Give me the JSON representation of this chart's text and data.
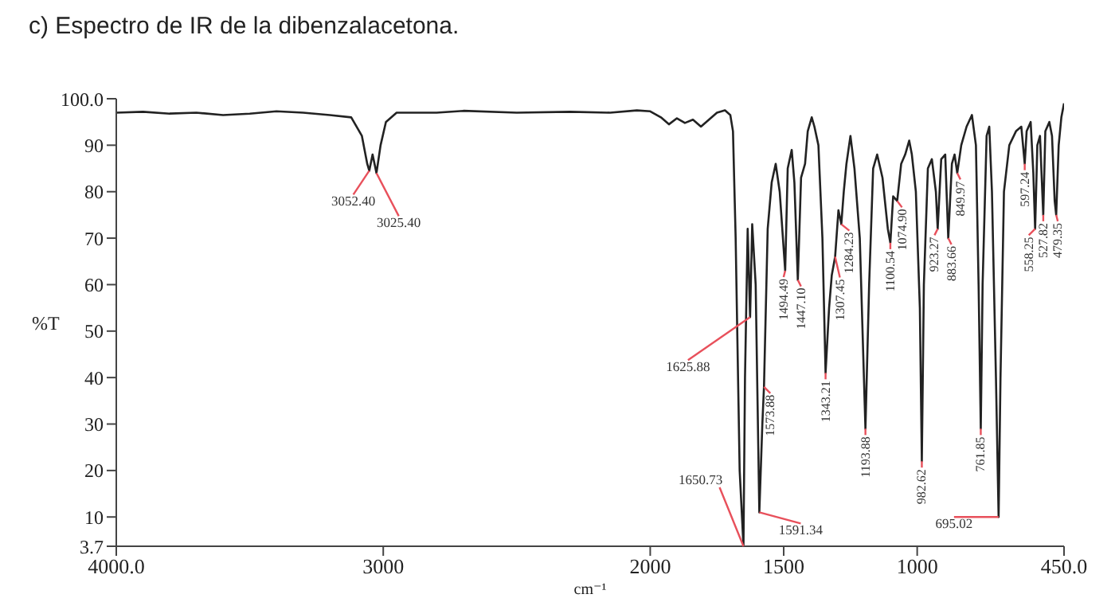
{
  "chart_data": {
    "type": "line",
    "title": "c) Espectro de IR de la dibenzalacetona.",
    "xlabel": "cm⁻¹",
    "ylabel": "%T",
    "color": "#222222",
    "x": [
      4000,
      3900,
      3800,
      3700,
      3600,
      3500,
      3400,
      3300,
      3200,
      3120,
      3080,
      3060,
      3052.4,
      3040,
      3025.4,
      3010,
      2990,
      2950,
      2800,
      2700,
      2500,
      2300,
      2150,
      2050,
      2000,
      1960,
      1930,
      1900,
      1870,
      1840,
      1810,
      1780,
      1750,
      1720,
      1700,
      1690,
      1680,
      1665,
      1650.73,
      1645,
      1635,
      1625.88,
      1618,
      1605,
      1591.34,
      1580,
      1573.88,
      1560,
      1545,
      1530,
      1515,
      1494.49,
      1485,
      1470,
      1460,
      1447.1,
      1435,
      1420,
      1410,
      1395,
      1385,
      1370,
      1355,
      1343.21,
      1330,
      1320,
      1307.45,
      1295,
      1284.23,
      1275,
      1265,
      1250,
      1235,
      1215,
      1193.88,
      1180,
      1165,
      1150,
      1130,
      1110,
      1100.54,
      1090,
      1074.9,
      1060,
      1045,
      1030,
      1020,
      1005,
      990,
      982.62,
      975,
      960,
      945,
      930,
      923.27,
      910,
      895,
      883.66,
      870,
      860,
      849.97,
      835,
      815,
      795,
      780,
      770,
      761.85,
      755,
      740,
      730,
      720,
      705,
      695.02,
      688,
      675,
      655,
      630,
      610,
      597.24,
      590,
      575,
      565,
      558.25,
      550,
      540,
      527.82,
      520,
      505,
      495,
      485,
      479.35,
      470,
      460,
      450
    ],
    "values": [
      97,
      97.2,
      96.8,
      97,
      96.5,
      96.8,
      97.3,
      97,
      96.5,
      96,
      92,
      86,
      84.5,
      88,
      84,
      90,
      95,
      97,
      97,
      97.4,
      97,
      97.2,
      97,
      97.5,
      97.3,
      96,
      94.5,
      95.8,
      94.8,
      95.5,
      94,
      95.5,
      97,
      97.5,
      96.5,
      93,
      70,
      20,
      3.7,
      40,
      72,
      53,
      73,
      60,
      11,
      30,
      38,
      72,
      82,
      86,
      80,
      63,
      85,
      89,
      82,
      61,
      83,
      86,
      93,
      96,
      94,
      90,
      70,
      41,
      55,
      62,
      66,
      76,
      73,
      80,
      86,
      92,
      85,
      70,
      29,
      60,
      85,
      88,
      83,
      72,
      69,
      79,
      78,
      86,
      88,
      91,
      88,
      80,
      55,
      22,
      60,
      85,
      87,
      80,
      72,
      87,
      88,
      70,
      86,
      88,
      84,
      90,
      94,
      96.5,
      90,
      60,
      29,
      60,
      92,
      94,
      80,
      40,
      10,
      40,
      80,
      90,
      93,
      94,
      86,
      93,
      95,
      84,
      72,
      90,
      92,
      75,
      93,
      95,
      92,
      78,
      75,
      90,
      96,
      99
    ],
    "xlim": [
      4000,
      450
    ],
    "xticks": [
      {
        "value": 4000,
        "label": "4000.0"
      },
      3000,
      2000,
      1500,
      1000,
      {
        "value": 450,
        "label": "450.0"
      }
    ],
    "ylim": [
      3.7,
      100
    ],
    "yticks": [
      3.7,
      10,
      20,
      30,
      40,
      50,
      60,
      70,
      80,
      90,
      {
        "value": 100,
        "label": "100.0"
      }
    ],
    "annotations": [
      {
        "text": "3052.40",
        "x": 3052.4,
        "y": 84.5
      },
      {
        "text": "3025.40",
        "x": 3025.4,
        "y": 84
      },
      {
        "text": "1650.73",
        "x": 1650.73,
        "y": 3.7
      },
      {
        "text": "1625.88",
        "x": 1625.88,
        "y": 53
      },
      {
        "text": "1591.34",
        "x": 1591.34,
        "y": 11
      },
      {
        "text": "1573.88",
        "x": 1573.88,
        "y": 38
      },
      {
        "text": "1494.49",
        "x": 1494.49,
        "y": 63
      },
      {
        "text": "1447.10",
        "x": 1447.1,
        "y": 61
      },
      {
        "text": "1343.21",
        "x": 1343.21,
        "y": 41
      },
      {
        "text": "1307.45",
        "x": 1307.45,
        "y": 66
      },
      {
        "text": "1284.23",
        "x": 1284.23,
        "y": 73
      },
      {
        "text": "1193.88",
        "x": 1193.88,
        "y": 29
      },
      {
        "text": "1100.54",
        "x": 1100.54,
        "y": 69
      },
      {
        "text": "1074.90",
        "x": 1074.9,
        "y": 78
      },
      {
        "text": "982.62",
        "x": 982.62,
        "y": 22
      },
      {
        "text": "923.27",
        "x": 923.27,
        "y": 72
      },
      {
        "text": "883.66",
        "x": 883.66,
        "y": 70
      },
      {
        "text": "849.97",
        "x": 849.97,
        "y": 84
      },
      {
        "text": "761.85",
        "x": 761.85,
        "y": 29
      },
      {
        "text": "695.02",
        "x": 695.02,
        "y": 10
      },
      {
        "text": "597.24",
        "x": 597.24,
        "y": 86
      },
      {
        "text": "558.25",
        "x": 558.25,
        "y": 72
      },
      {
        "text": "527.82",
        "x": 527.82,
        "y": 75
      },
      {
        "text": "479.35",
        "x": 479.35,
        "y": 75
      }
    ]
  }
}
